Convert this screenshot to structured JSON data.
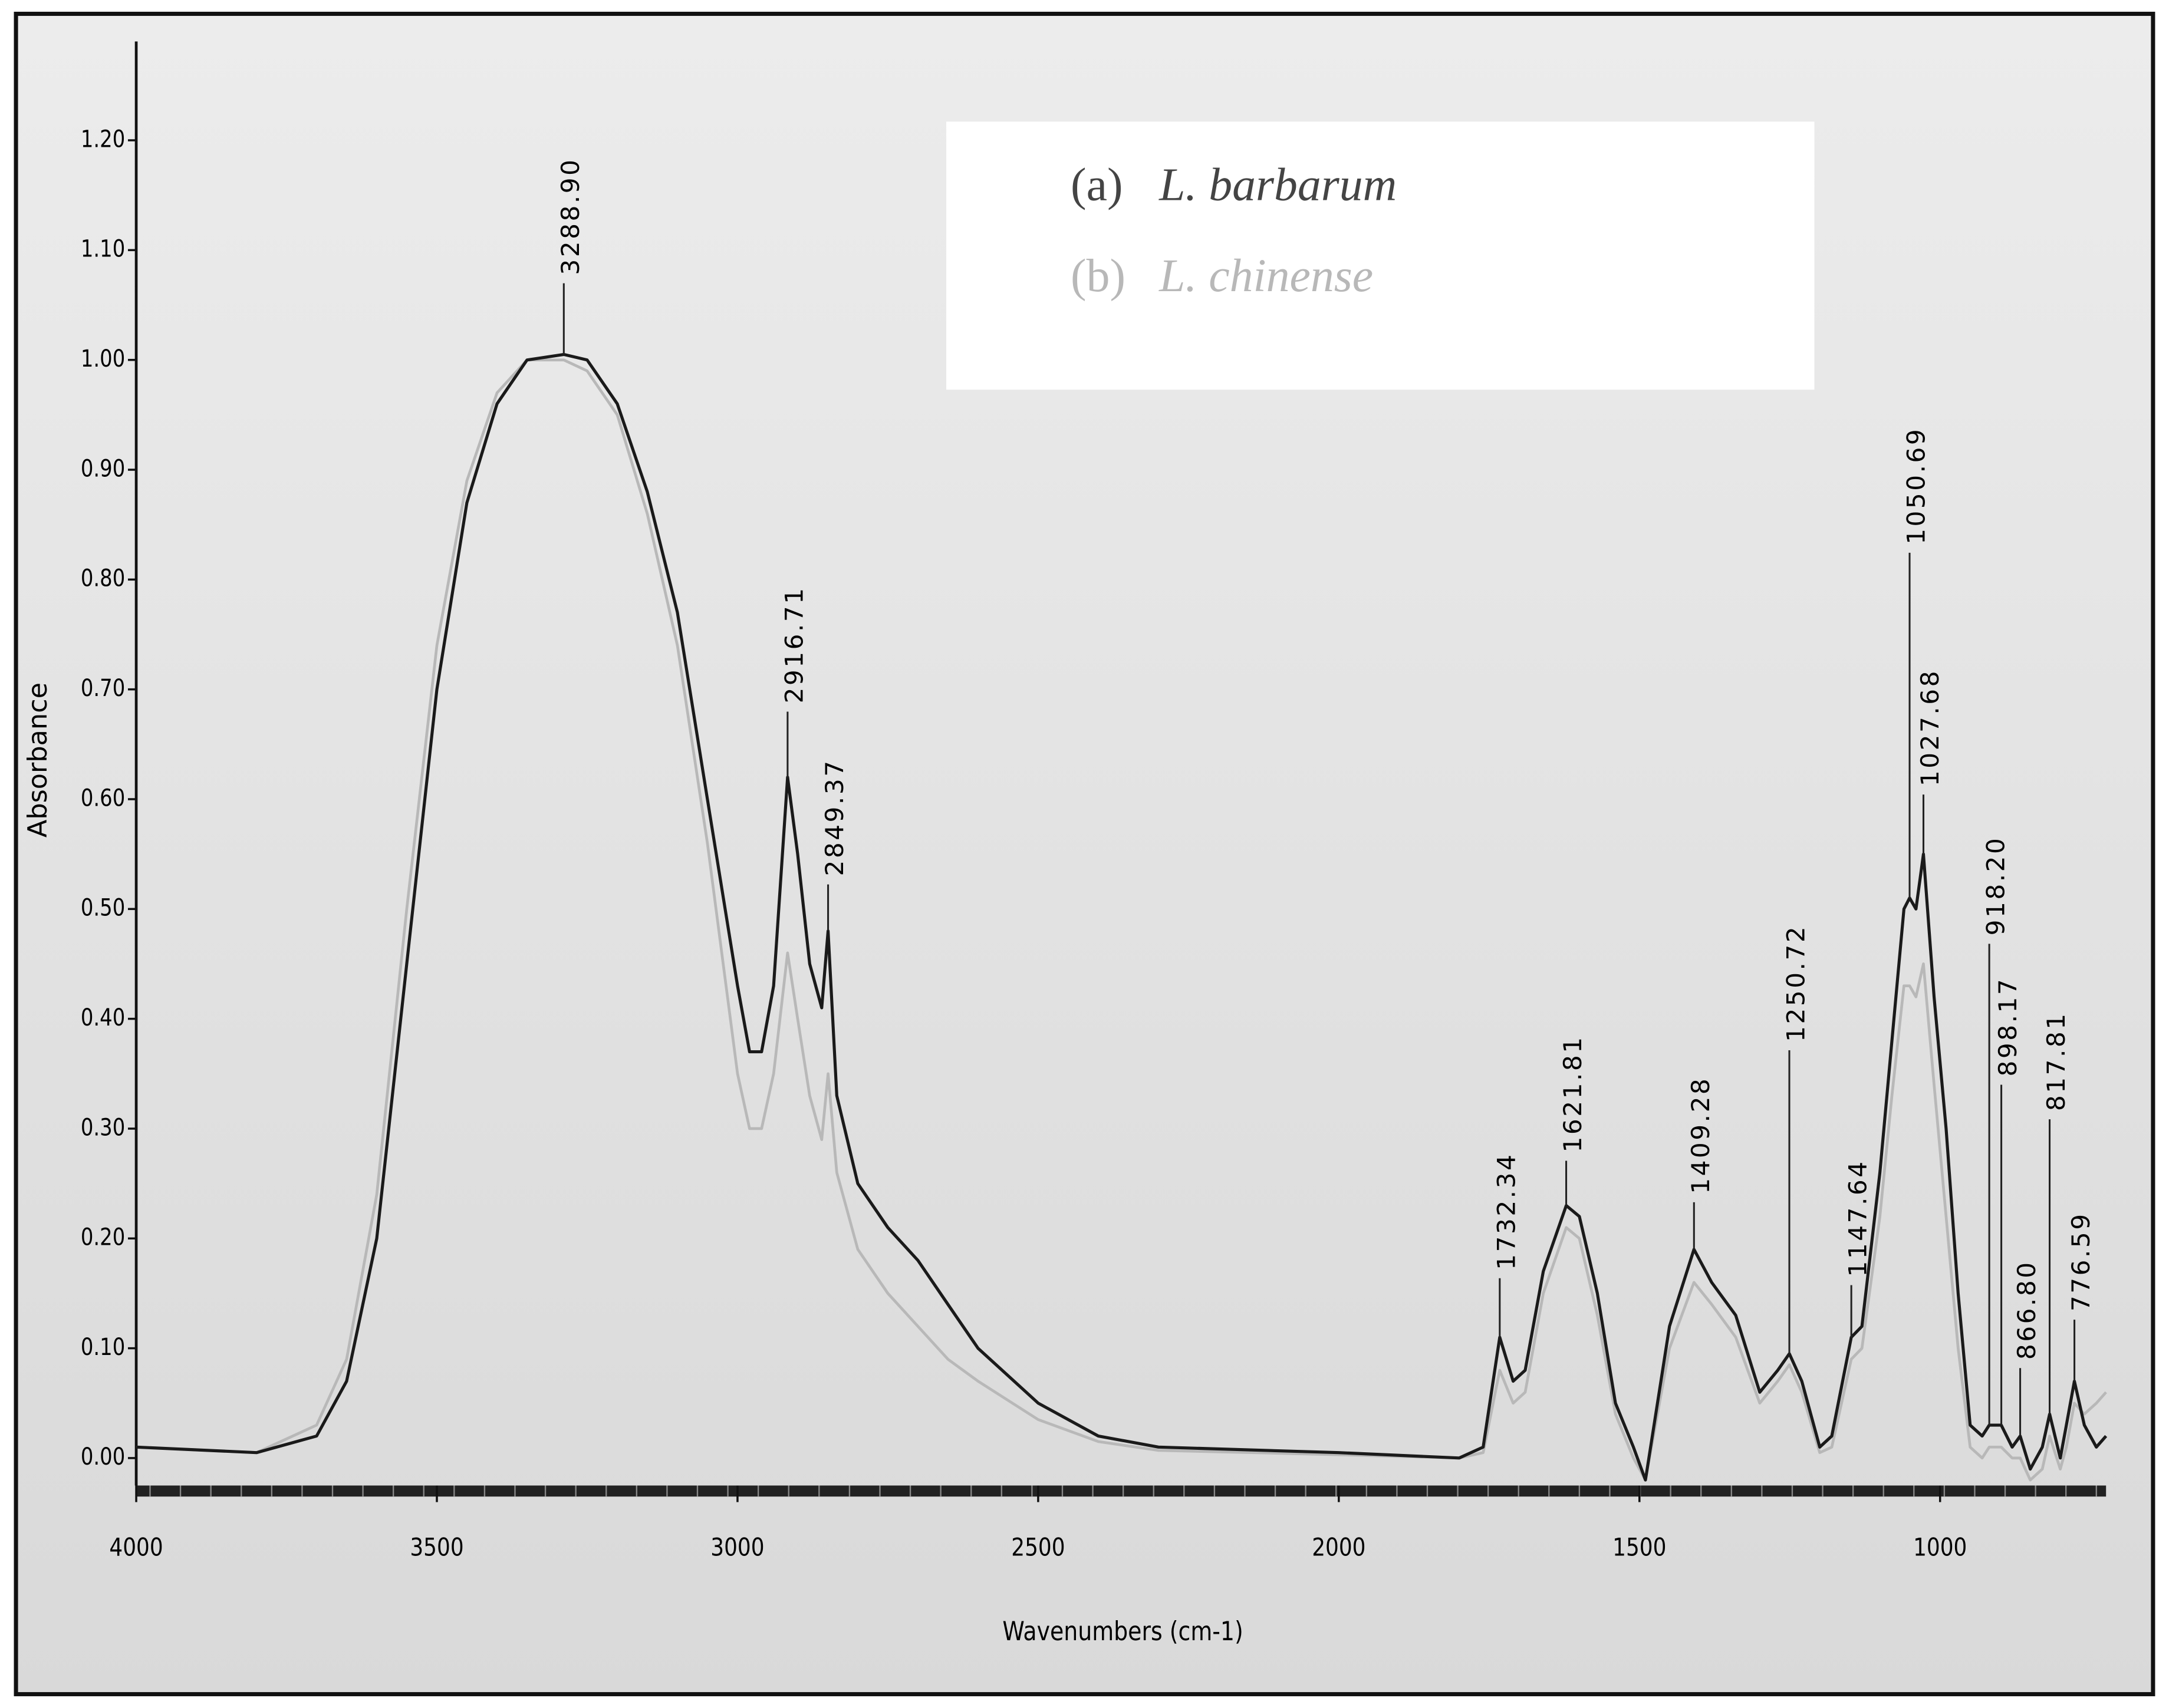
{
  "chart_data": {
    "type": "line",
    "x_label": "Wavenumbers (cm-1)",
    "y_label": "Absorbance",
    "x": [
      4000,
      3800,
      3700,
      3650,
      3600,
      3550,
      3500,
      3450,
      3400,
      3350,
      3288.9,
      3250,
      3200,
      3150,
      3100,
      3050,
      3000,
      2980,
      2960,
      2940,
      2916.71,
      2900,
      2880,
      2860,
      2849.37,
      2835,
      2800,
      2750,
      2700,
      2650,
      2600,
      2500,
      2400,
      2300,
      2000,
      1800,
      1760,
      1732.34,
      1710,
      1690,
      1660,
      1621.81,
      1600,
      1570,
      1540,
      1510,
      1490,
      1470,
      1450,
      1409.28,
      1380,
      1340,
      1300,
      1270,
      1250.72,
      1230,
      1200,
      1180,
      1147.64,
      1130,
      1100,
      1080,
      1060,
      1050.69,
      1040,
      1027.68,
      1010,
      990,
      970,
      950,
      930,
      918.2,
      905,
      898.17,
      880,
      866.8,
      850,
      830,
      817.81,
      800,
      790,
      776.59,
      760,
      740,
      724
    ],
    "series": [
      {
        "name": "L. barbarum",
        "label": "(a)",
        "color": "#1a1a1a",
        "values": [
          0.01,
          0.005,
          0.02,
          0.07,
          0.2,
          0.45,
          0.7,
          0.87,
          0.96,
          1.0,
          1.005,
          1.0,
          0.96,
          0.88,
          0.77,
          0.6,
          0.43,
          0.37,
          0.37,
          0.43,
          0.62,
          0.55,
          0.45,
          0.41,
          0.48,
          0.33,
          0.25,
          0.21,
          0.18,
          0.14,
          0.1,
          0.05,
          0.02,
          0.01,
          0.005,
          0.0,
          0.01,
          0.11,
          0.07,
          0.08,
          0.17,
          0.23,
          0.22,
          0.15,
          0.05,
          0.01,
          -0.02,
          0.05,
          0.12,
          0.19,
          0.16,
          0.13,
          0.06,
          0.08,
          0.095,
          0.07,
          0.01,
          0.02,
          0.11,
          0.12,
          0.26,
          0.38,
          0.5,
          0.51,
          0.5,
          0.55,
          0.42,
          0.3,
          0.15,
          0.03,
          0.02,
          0.03,
          0.03,
          0.03,
          0.01,
          0.02,
          -0.01,
          0.01,
          0.04,
          0.0,
          0.03,
          0.07,
          0.03,
          0.01,
          0.02
        ]
      },
      {
        "name": "L. chinense",
        "label": "(b)",
        "color": "#b8b8b8",
        "values": [
          0.01,
          0.005,
          0.03,
          0.09,
          0.24,
          0.5,
          0.74,
          0.89,
          0.97,
          1.0,
          1.0,
          0.99,
          0.95,
          0.86,
          0.74,
          0.56,
          0.35,
          0.3,
          0.3,
          0.35,
          0.46,
          0.4,
          0.33,
          0.29,
          0.35,
          0.26,
          0.19,
          0.15,
          0.12,
          0.09,
          0.07,
          0.035,
          0.015,
          0.007,
          0.003,
          0.0,
          0.005,
          0.08,
          0.05,
          0.06,
          0.15,
          0.21,
          0.2,
          0.13,
          0.04,
          0.0,
          -0.02,
          0.04,
          0.1,
          0.16,
          0.14,
          0.11,
          0.05,
          0.07,
          0.085,
          0.06,
          0.005,
          0.01,
          0.09,
          0.1,
          0.22,
          0.33,
          0.43,
          0.43,
          0.42,
          0.45,
          0.34,
          0.22,
          0.1,
          0.01,
          0.0,
          0.01,
          0.01,
          0.01,
          0.0,
          0.0,
          -0.02,
          -0.01,
          0.02,
          -0.01,
          0.01,
          0.05,
          0.04,
          0.05,
          0.06
        ]
      }
    ],
    "annotations": [
      {
        "value": 3288.9,
        "label": "3288.90"
      },
      {
        "value": 2916.71,
        "label": "2916.71"
      },
      {
        "value": 2849.37,
        "label": "2849.37"
      },
      {
        "value": 1732.34,
        "label": "1732.34"
      },
      {
        "value": 1621.81,
        "label": "1621.81"
      },
      {
        "value": 1409.28,
        "label": "1409.28"
      },
      {
        "value": 1250.72,
        "label": "1250.72"
      },
      {
        "value": 1147.64,
        "label": "1147.64"
      },
      {
        "value": 1050.69,
        "label": "1050.69"
      },
      {
        "value": 1027.68,
        "label": "1027.68"
      },
      {
        "value": 918.2,
        "label": "918.20"
      },
      {
        "value": 898.17,
        "label": "898.17"
      },
      {
        "value": 866.8,
        "label": "866.80"
      },
      {
        "value": 817.81,
        "label": "817.81"
      },
      {
        "value": 776.59,
        "label": "776.59"
      }
    ],
    "xlim": [
      4000,
      724
    ],
    "xticks": [
      4000,
      3500,
      3000,
      2500,
      2000,
      1500,
      1000
    ],
    "ylim": [
      -0.025,
      1.29
    ],
    "yticks": [
      {
        "value": 0,
        "label": "0.00"
      },
      {
        "value": 0.1,
        "label": "0.10"
      },
      {
        "value": 0.2,
        "label": "0.20"
      },
      {
        "value": 0.3,
        "label": "0.30"
      },
      {
        "value": 0.4,
        "label": "0.40"
      },
      {
        "value": 0.5,
        "label": "0.50"
      },
      {
        "value": 0.6,
        "label": "0.60"
      },
      {
        "value": 0.7,
        "label": "0.70"
      },
      {
        "value": 0.8,
        "label": "0.80"
      },
      {
        "value": 0.9,
        "label": "0.90"
      },
      {
        "value": 1.0,
        "label": "1.00"
      },
      {
        "value": 1.1,
        "label": "1.10"
      },
      {
        "value": 1.2,
        "label": "1.20"
      }
    ],
    "grid": false
  }
}
